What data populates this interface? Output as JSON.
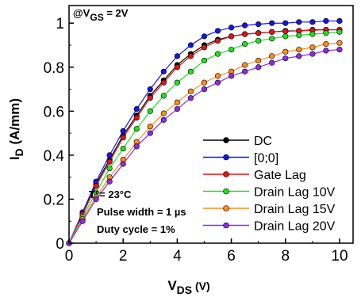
{
  "chart_data": {
    "type": "line",
    "ylabel_main": "I",
    "ylabel_sub": "D",
    "ylabel_rest": " (A/mm)",
    "xlabel_main": "V",
    "xlabel_sub": "DS",
    "xlabel_rest": " (V)",
    "xlim": [
      0,
      10.5
    ],
    "ylim": [
      0,
      1.08
    ],
    "xticks": [
      "0",
      "2",
      "4",
      "6",
      "8",
      "10"
    ],
    "xtick_values": [
      0,
      2,
      4,
      6,
      8,
      10
    ],
    "yticks": [
      "0",
      "0.2",
      "0.4",
      "0.6",
      "0.8",
      "1"
    ],
    "ytick_values": [
      0,
      0.2,
      0.4,
      0.6,
      0.8,
      1.0
    ],
    "annotations": {
      "vgs_prefix": "@V",
      "vgs_sub": "GS",
      "vgs_suffix": " = 2V",
      "temp": "T°= 23°C",
      "pulse": "Pulse width = 1 µs",
      "duty": "Duty cycle = 1%"
    },
    "x": [
      0,
      0.5,
      1,
      1.5,
      2,
      2.5,
      3,
      3.5,
      4,
      4.5,
      5,
      5.5,
      6,
      6.5,
      7,
      7.5,
      8,
      8.5,
      9,
      9.5,
      10
    ],
    "series": [
      {
        "name": "DC",
        "color": "#000000",
        "values": [
          0,
          0.14,
          0.27,
          0.38,
          0.49,
          0.58,
          0.67,
          0.74,
          0.81,
          0.86,
          0.9,
          0.925,
          0.94,
          0.95,
          0.955,
          0.96,
          0.965,
          0.965,
          0.97,
          0.97,
          0.97
        ]
      },
      {
        "name": "[0;0]",
        "color": "#1515e0",
        "values": [
          0,
          0.14,
          0.28,
          0.4,
          0.51,
          0.61,
          0.7,
          0.78,
          0.85,
          0.9,
          0.94,
          0.965,
          0.98,
          0.99,
          0.995,
          1.0,
          1.0,
          1.005,
          1.005,
          1.01,
          1.01
        ]
      },
      {
        "name": "Gate Lag",
        "color": "#e01515",
        "values": [
          0,
          0.13,
          0.26,
          0.37,
          0.48,
          0.57,
          0.66,
          0.73,
          0.8,
          0.85,
          0.89,
          0.92,
          0.94,
          0.95,
          0.955,
          0.96,
          0.963,
          0.965,
          0.968,
          0.97,
          0.97
        ]
      },
      {
        "name": "Drain Lag 10V",
        "color": "#20e020",
        "values": [
          0,
          0.12,
          0.23,
          0.34,
          0.43,
          0.52,
          0.6,
          0.67,
          0.73,
          0.78,
          0.83,
          0.86,
          0.88,
          0.905,
          0.92,
          0.93,
          0.94,
          0.945,
          0.95,
          0.955,
          0.96
        ]
      },
      {
        "name": "Drain Lag 15V",
        "color": "#ff8c1a",
        "values": [
          0,
          0.11,
          0.21,
          0.3,
          0.38,
          0.46,
          0.53,
          0.59,
          0.64,
          0.69,
          0.73,
          0.76,
          0.78,
          0.81,
          0.83,
          0.85,
          0.87,
          0.88,
          0.89,
          0.905,
          0.91
        ]
      },
      {
        "name": "Drain Lag 20V",
        "color": "#8c2be2",
        "values": [
          0,
          0.1,
          0.2,
          0.28,
          0.36,
          0.44,
          0.5,
          0.56,
          0.61,
          0.66,
          0.7,
          0.73,
          0.76,
          0.78,
          0.8,
          0.82,
          0.84,
          0.85,
          0.86,
          0.875,
          0.88
        ]
      }
    ]
  }
}
